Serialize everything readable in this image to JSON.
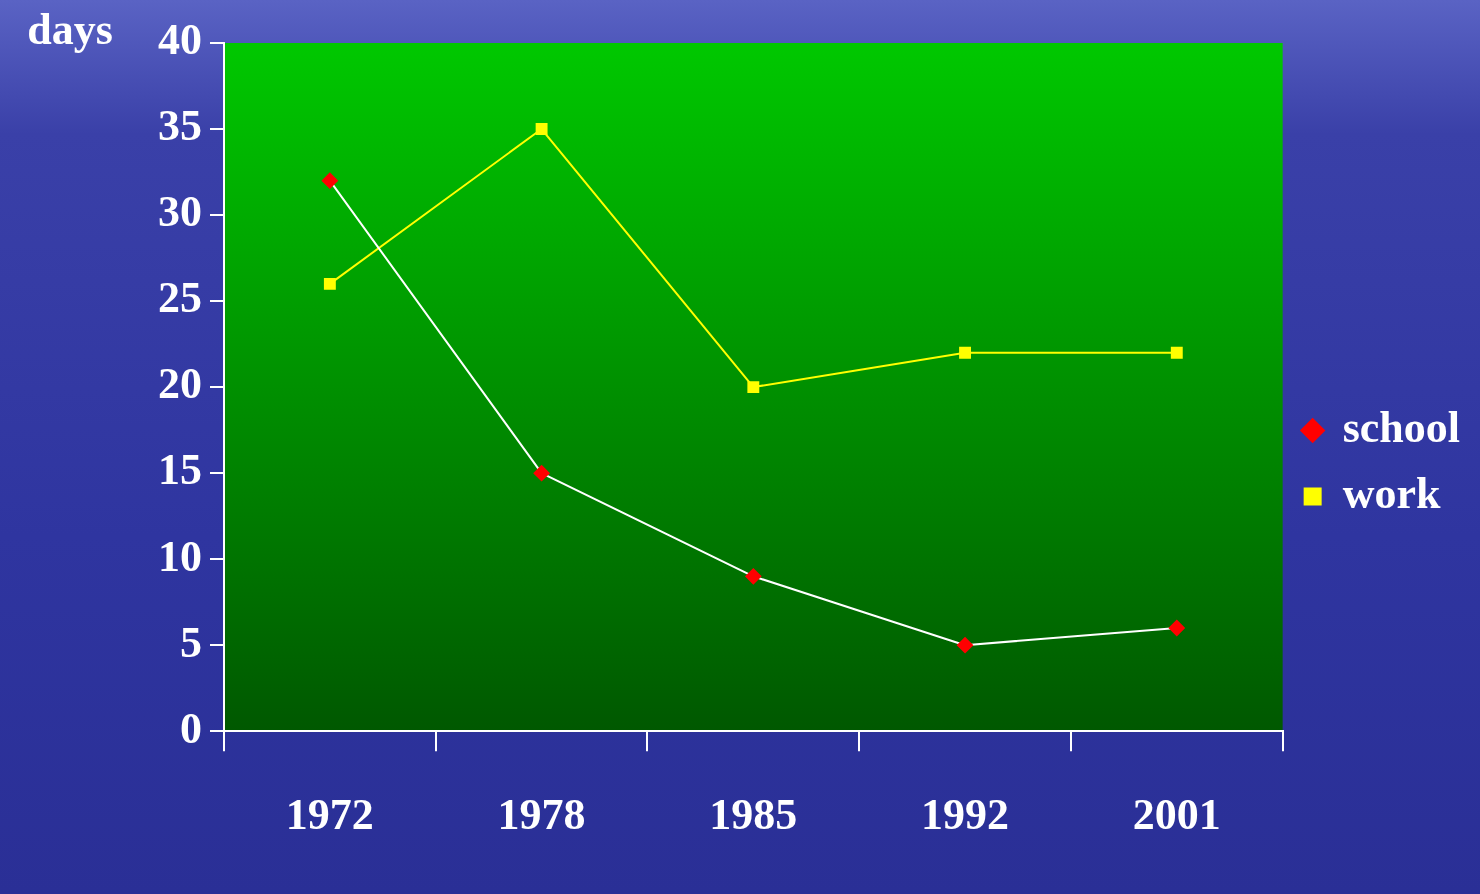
{
  "chart_data": {
    "type": "line",
    "ylabel": "days",
    "categories": [
      "1972",
      "1978",
      "1985",
      "1992",
      "2001"
    ],
    "series": [
      {
        "name": "school",
        "color": "#ff0000",
        "marker": "diamond",
        "values": [
          32,
          15,
          9,
          5,
          6
        ]
      },
      {
        "name": "work",
        "color": "#ffff00",
        "marker": "square",
        "values": [
          26,
          35,
          20,
          22,
          22
        ]
      }
    ],
    "ylim": [
      0,
      40
    ],
    "yticks": [
      0,
      5,
      10,
      15,
      20,
      25,
      30,
      35,
      40
    ],
    "grid": false,
    "legend": "right",
    "line_style": "solid"
  }
}
